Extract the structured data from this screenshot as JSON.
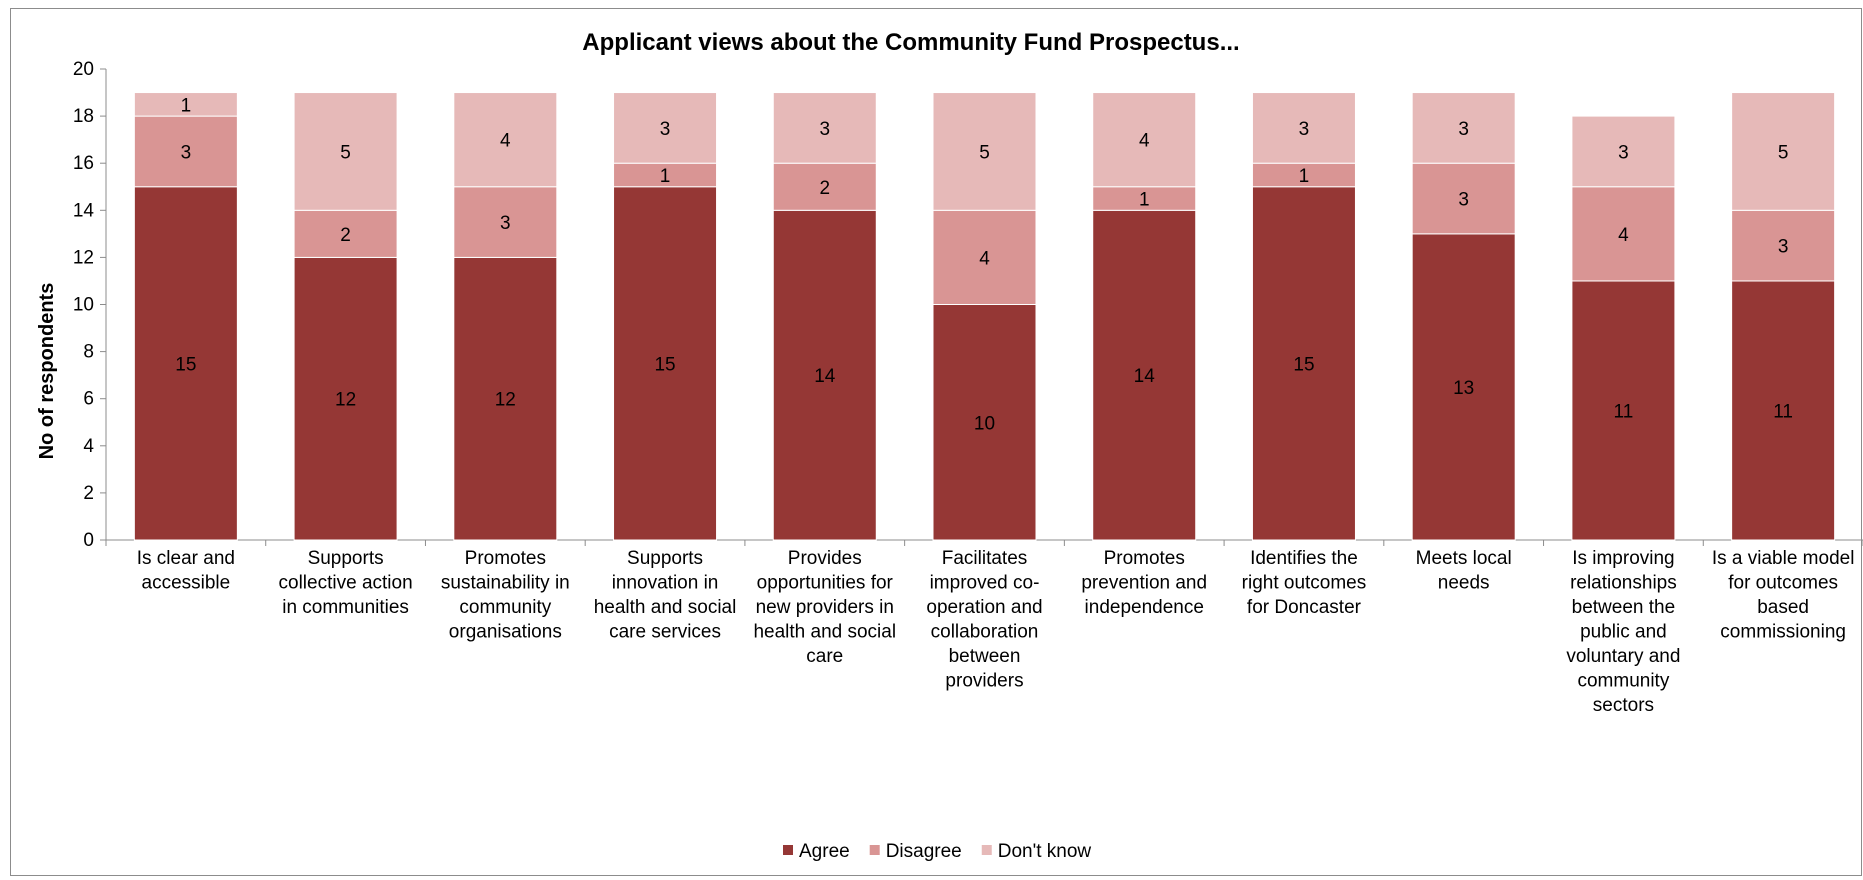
{
  "chart_data": {
    "type": "bar",
    "stacked": true,
    "title": "Applicant views about the Community Fund Prospectus...",
    "xlabel": "",
    "ylabel": "No of respondents",
    "ylim": [
      0,
      20
    ],
    "yticks": [
      0,
      2,
      4,
      6,
      8,
      10,
      12,
      14,
      16,
      18,
      20
    ],
    "grid": false,
    "legend_position": "bottom",
    "categories": [
      [
        "Is clear and",
        "accessible"
      ],
      [
        "Supports",
        "collective action",
        "in communities"
      ],
      [
        "Promotes",
        "sustainability in",
        "community",
        "organisations"
      ],
      [
        "Supports",
        "innovation in",
        "health and social",
        "care services"
      ],
      [
        "Provides",
        "opportunities for",
        "new providers in",
        "health and social",
        "care"
      ],
      [
        "Facilitates",
        "improved co-",
        "operation and",
        "collaboration",
        "between",
        "providers"
      ],
      [
        "Promotes",
        "prevention and",
        "independence"
      ],
      [
        "Identifies the",
        "right outcomes",
        "for Doncaster"
      ],
      [
        "Meets local",
        "needs"
      ],
      [
        "Is improving",
        "relationships",
        "between the",
        "public and",
        "voluntary and",
        "community",
        "sectors"
      ],
      [
        "Is a viable model",
        "for outcomes",
        "based",
        "commissioning"
      ]
    ],
    "series": [
      {
        "name": "Agree",
        "color": "#953735",
        "values": [
          15,
          12,
          12,
          15,
          14,
          10,
          14,
          15,
          13,
          11,
          11
        ]
      },
      {
        "name": "Disagree",
        "color": "#d99594",
        "values": [
          3,
          2,
          3,
          1,
          2,
          4,
          1,
          1,
          3,
          4,
          3
        ]
      },
      {
        "name": "Don't know",
        "color": "#e6b9b8",
        "values": [
          1,
          5,
          4,
          3,
          3,
          5,
          4,
          3,
          3,
          3,
          5
        ]
      }
    ]
  }
}
